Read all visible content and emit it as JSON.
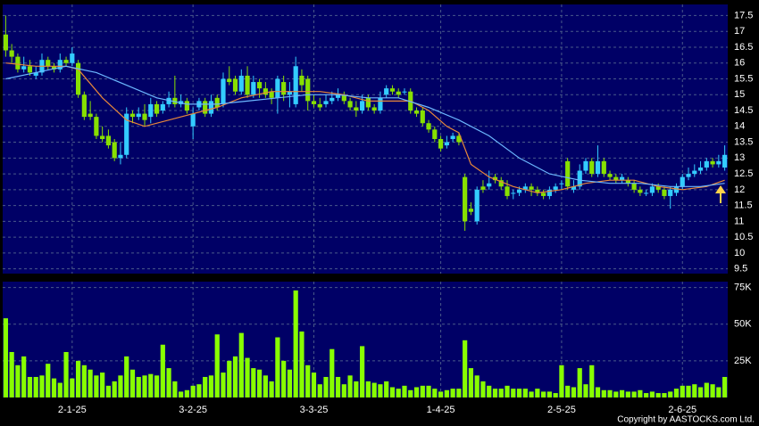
{
  "chart_data": {
    "type": "candlestick",
    "source": "Copyright by AASTOCKS.com Ltd.",
    "categories": [
      null,
      null,
      null,
      null,
      null,
      null,
      null,
      null,
      null,
      null,
      null,
      "2-1-25",
      null,
      null,
      null,
      null,
      null,
      null,
      null,
      null,
      null,
      null,
      null,
      null,
      null,
      null,
      null,
      null,
      null,
      null,
      null,
      "3-2-25",
      null,
      null,
      null,
      null,
      null,
      null,
      null,
      null,
      null,
      null,
      null,
      null,
      null,
      null,
      null,
      null,
      null,
      null,
      null,
      "3-3-25",
      null,
      null,
      null,
      null,
      null,
      null,
      null,
      null,
      null,
      null,
      null,
      null,
      null,
      null,
      null,
      null,
      null,
      null,
      null,
      null,
      "1-4-25",
      null,
      null,
      null,
      null,
      null,
      null,
      null,
      null,
      null,
      null,
      null,
      null,
      null,
      null,
      null,
      null,
      null,
      null,
      null,
      "2-5-25",
      null,
      null,
      null,
      null,
      null,
      null,
      null,
      null,
      null,
      null,
      null,
      null,
      null,
      null,
      null,
      null,
      null,
      null,
      null,
      "2-6-25",
      null,
      null,
      null,
      null,
      null,
      null,
      null
    ],
    "open": [
      16.9,
      16.4,
      16.2,
      15.8,
      15.9,
      15.6,
      15.7,
      16.1,
      15.9,
      15.8,
      16.1,
      16.0,
      16.0,
      15.0,
      14.4,
      14.3,
      13.7,
      13.7,
      13.5,
      13.0,
      13.1,
      14.4,
      14.3,
      14.4,
      14.3,
      14.7,
      14.5,
      14.7,
      14.9,
      14.7,
      14.8,
      14.0,
      14.6,
      14.8,
      14.4,
      14.9,
      14.7,
      15.5,
      15.5,
      15.1,
      15.6,
      15.0,
      15.4,
      15.2,
      15.1,
      14.9,
      15.4,
      15.0,
      14.7,
      15.6,
      15.5,
      14.8,
      14.7,
      14.7,
      14.8,
      14.9,
      15.0,
      14.8,
      14.6,
      14.5,
      14.9,
      14.6,
      14.5,
      15.0,
      15.2,
      15.1,
      15.1,
      15.1,
      14.5,
      14.5,
      14.1,
      13.9,
      13.6,
      13.4,
      13.6,
      13.7,
      12.4,
      11.4,
      11.0,
      12.1,
      12.1,
      12.4,
      12.3,
      12.1,
      11.9,
      11.9,
      12.0,
      12.1,
      12.0,
      11.9,
      11.8,
      12.0,
      12.2,
      12.9,
      12.0,
      12.1,
      12.6,
      12.9,
      12.5,
      12.9,
      12.5,
      12.4,
      12.3,
      12.3,
      12.2,
      12.0,
      11.9,
      11.9,
      12.1,
      12.0,
      11.8,
      11.9,
      12.1,
      12.4,
      12.5,
      12.6,
      12.7,
      12.9,
      12.8,
      12.7
    ],
    "high": [
      17.5,
      16.6,
      16.3,
      16.2,
      16.1,
      15.9,
      16.3,
      16.2,
      16.0,
      16.3,
      16.2,
      16.5,
      16.1,
      15.1,
      14.8,
      14.4,
      14.0,
      13.9,
      13.6,
      13.5,
      14.6,
      14.5,
      14.6,
      14.7,
      14.9,
      14.8,
      14.8,
      15.1,
      15.6,
      15.0,
      14.9,
      14.6,
      14.9,
      14.9,
      15.0,
      15.0,
      15.7,
      15.9,
      15.6,
      15.8,
      15.9,
      15.6,
      15.5,
      15.4,
      15.2,
      15.6,
      15.6,
      15.4,
      16.2,
      15.8,
      15.6,
      15.0,
      14.9,
      15.0,
      15.1,
      15.2,
      15.1,
      14.9,
      14.8,
      15.0,
      15.0,
      14.7,
      15.1,
      15.3,
      15.3,
      15.2,
      15.2,
      15.2,
      14.6,
      14.6,
      14.2,
      14.0,
      13.7,
      13.7,
      13.8,
      13.8,
      12.5,
      11.6,
      12.1,
      12.3,
      12.6,
      12.5,
      12.4,
      12.3,
      12.0,
      12.1,
      12.2,
      12.2,
      12.1,
      12.0,
      12.1,
      12.2,
      12.3,
      13.0,
      12.3,
      12.8,
      13.0,
      13.0,
      13.4,
      13.0,
      12.6,
      12.5,
      12.5,
      12.4,
      12.3,
      12.1,
      12.0,
      12.2,
      12.2,
      12.1,
      12.1,
      12.2,
      12.5,
      12.7,
      12.8,
      12.9,
      13.0,
      13.0,
      13.1,
      13.4
    ],
    "low": [
      16.2,
      16.0,
      15.7,
      15.7,
      15.6,
      15.5,
      15.6,
      15.8,
      15.7,
      15.7,
      15.9,
      15.9,
      14.9,
      14.2,
      14.2,
      13.6,
      13.5,
      13.3,
      12.9,
      12.8,
      13.0,
      14.1,
      14.2,
      14.0,
      14.1,
      14.3,
      14.4,
      14.6,
      14.6,
      14.6,
      14.4,
      13.6,
      14.5,
      14.3,
      14.3,
      14.5,
      14.6,
      15.3,
      15.0,
      15.0,
      14.9,
      14.9,
      14.9,
      14.9,
      14.7,
      14.4,
      14.8,
      14.6,
      14.6,
      15.1,
      14.5,
      14.6,
      14.5,
      14.6,
      14.7,
      14.8,
      14.7,
      14.5,
      14.3,
      14.4,
      14.5,
      14.4,
      14.4,
      14.9,
      15.0,
      14.9,
      15.0,
      14.4,
      14.3,
      14.0,
      13.8,
      13.5,
      13.2,
      13.3,
      13.5,
      13.4,
      10.7,
      11.2,
      10.9,
      11.9,
      12.0,
      12.2,
      12.0,
      11.7,
      11.7,
      11.8,
      11.9,
      11.8,
      11.8,
      11.7,
      11.7,
      11.9,
      12.0,
      12.0,
      11.9,
      12.0,
      12.5,
      12.4,
      12.4,
      12.4,
      12.3,
      12.2,
      12.2,
      12.1,
      11.9,
      11.8,
      11.8,
      11.8,
      11.9,
      11.7,
      11.4,
      11.8,
      12.0,
      12.3,
      12.4,
      12.5,
      12.6,
      12.7,
      12.7,
      12.6
    ],
    "close": [
      16.4,
      16.2,
      15.8,
      15.9,
      15.7,
      15.7,
      16.1,
      15.9,
      15.8,
      16.1,
      16.0,
      16.3,
      15.0,
      14.3,
      14.3,
      13.7,
      13.6,
      13.4,
      13.0,
      13.1,
      14.4,
      14.3,
      14.4,
      14.2,
      14.7,
      14.4,
      14.7,
      14.9,
      14.7,
      14.8,
      14.5,
      14.4,
      14.8,
      14.4,
      14.8,
      14.6,
      15.5,
      15.4,
      15.1,
      15.6,
      15.0,
      15.4,
      15.2,
      15.0,
      14.9,
      15.5,
      15.0,
      15.1,
      15.9,
      15.3,
      14.8,
      14.7,
      14.6,
      14.8,
      14.9,
      15.0,
      14.8,
      14.6,
      14.5,
      14.8,
      14.6,
      14.5,
      14.9,
      15.2,
      15.1,
      15.0,
      15.1,
      14.5,
      14.4,
      14.1,
      13.9,
      13.6,
      13.3,
      13.5,
      13.7,
      13.5,
      11.0,
      11.3,
      12.0,
      12.0,
      12.2,
      12.3,
      12.1,
      11.8,
      11.9,
      12.0,
      12.1,
      12.0,
      11.9,
      11.8,
      12.0,
      12.1,
      12.2,
      12.1,
      12.1,
      12.6,
      12.9,
      12.5,
      12.9,
      12.5,
      12.4,
      12.3,
      12.4,
      12.2,
      12.0,
      11.9,
      11.9,
      12.1,
      12.0,
      11.8,
      12.0,
      12.1,
      12.4,
      12.5,
      12.6,
      12.7,
      12.9,
      12.8,
      12.9,
      13.1
    ],
    "volume": [
      54000,
      31000,
      22000,
      28000,
      14000,
      14000,
      15000,
      23000,
      13000,
      10000,
      31000,
      13000,
      25000,
      22000,
      19000,
      15000,
      17000,
      8000,
      11000,
      15000,
      28000,
      19000,
      14000,
      15000,
      16000,
      15000,
      36000,
      20000,
      11000,
      4000,
      5000,
      8000,
      9000,
      14000,
      15000,
      43000,
      17000,
      25000,
      28000,
      44000,
      27000,
      20000,
      19000,
      15000,
      11000,
      41000,
      25000,
      19000,
      73000,
      45000,
      22000,
      17000,
      9000,
      14000,
      33000,
      14000,
      9000,
      15000,
      11000,
      35000,
      11000,
      10000,
      9000,
      11000,
      7000,
      6000,
      8000,
      5000,
      7000,
      8000,
      8000,
      6000,
      4000,
      5000,
      6000,
      6000,
      39000,
      20000,
      15000,
      11000,
      8000,
      6000,
      6000,
      8000,
      6000,
      6000,
      6000,
      4000,
      6000,
      4000,
      4000,
      3000,
      22000,
      8000,
      7000,
      20000,
      9000,
      22000,
      7000,
      5000,
      5000,
      4000,
      5000,
      4000,
      4000,
      5000,
      3000,
      4000,
      3000,
      3000,
      4000,
      6000,
      8000,
      8000,
      9000,
      7000,
      10000,
      9000,
      7000,
      14000
    ],
    "up_color": "#33ccff",
    "down_color": "#88e000",
    "volume_color": "#88ff00",
    "lines": [
      {
        "color": "#e8883a",
        "x": [
          0,
          5,
          10,
          12,
          16,
          20,
          23,
          27,
          31,
          35,
          39,
          44,
          48,
          52,
          56,
          60,
          64,
          67,
          70,
          73,
          75,
          77,
          80,
          84,
          88,
          92,
          96,
          100,
          104,
          108,
          112,
          116,
          119
        ],
        "values": [
          16.0,
          15.9,
          15.9,
          15.8,
          14.9,
          14.2,
          14.0,
          14.2,
          14.4,
          14.6,
          14.9,
          15.1,
          15.1,
          15.1,
          15.0,
          14.8,
          14.8,
          14.8,
          14.5,
          14.0,
          13.8,
          12.8,
          12.4,
          12.1,
          11.9,
          12.0,
          12.2,
          12.3,
          12.3,
          12.1,
          12.0,
          12.1,
          12.3
        ]
      },
      {
        "color": "#6cb8ff",
        "x": [
          0,
          5,
          10,
          15,
          20,
          25,
          30,
          35,
          40,
          45,
          50,
          55,
          60,
          65,
          70,
          75,
          80,
          85,
          90,
          95,
          100,
          105,
          110,
          115,
          119
        ],
        "values": [
          15.5,
          15.7,
          15.9,
          15.7,
          15.3,
          14.9,
          14.7,
          14.7,
          14.8,
          14.9,
          15.0,
          15.0,
          14.9,
          14.9,
          14.6,
          14.2,
          13.7,
          13.0,
          12.5,
          12.3,
          12.2,
          12.2,
          12.1,
          12.1,
          12.2
        ]
      }
    ],
    "ylim": [
      9.35,
      17.85
    ],
    "yticks": [
      9.5,
      10,
      10.5,
      11,
      11.5,
      12,
      12.5,
      13,
      13.5,
      14,
      14.5,
      15,
      15.5,
      16,
      16.5,
      17,
      17.5
    ],
    "y2lim": [
      0,
      79000
    ],
    "y2ticks": [
      {
        "value": 25000,
        "label": "25K"
      },
      {
        "value": 50000,
        "label": "50K"
      },
      {
        "value": 75000,
        "label": "75K"
      }
    ],
    "grid": true
  }
}
